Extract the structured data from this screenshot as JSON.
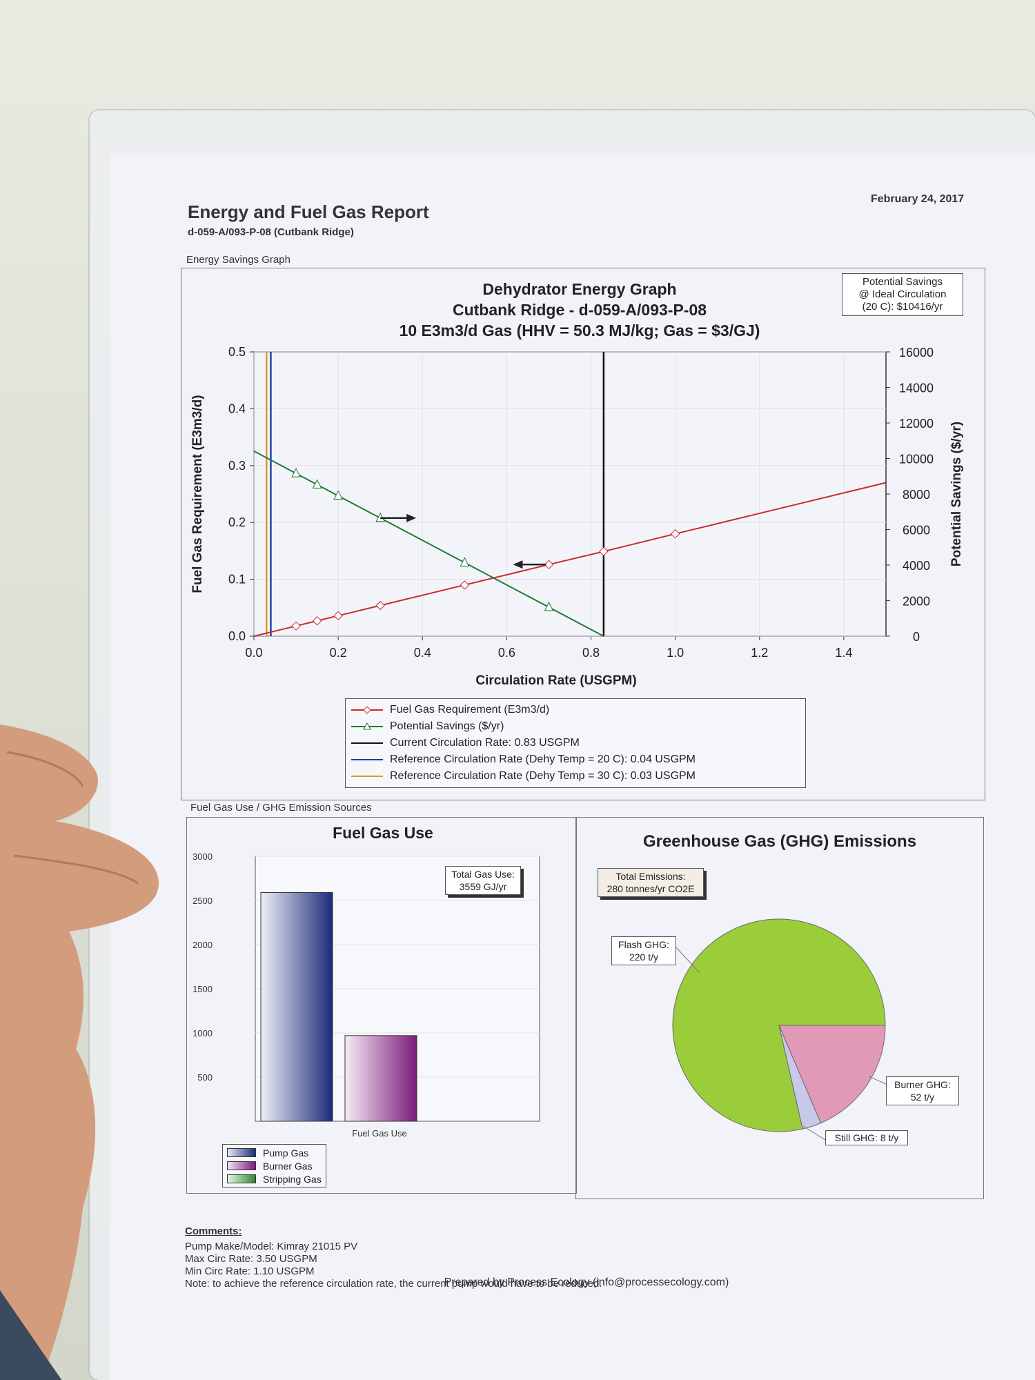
{
  "report": {
    "title": "Energy and Fuel Gas Report",
    "subtitle": "d-059-A/093-P-08 (Cutbank Ridge)",
    "date": "February 24, 2017"
  },
  "energy_section": {
    "label": "Energy Savings Graph",
    "chart_title_lines": [
      "Dehydrator Energy Graph",
      "Cutbank Ridge - d-059-A/093-P-08",
      "10 E3m3/d Gas (HHV = 50.3 MJ/kg; Gas = $3/GJ)"
    ],
    "savings_callout": [
      "Potential Savings",
      "@ Ideal Circulation",
      "(20 C): $10416/yr"
    ]
  },
  "fuel_section": {
    "label": "Fuel Gas Use / GHG Emission Sources",
    "fuel_title": "Fuel Gas Use",
    "fuel_callout": [
      "Total Gas Use:",
      "3559 GJ/yr"
    ],
    "ghg_title": "Greenhouse Gas (GHG) Emissions",
    "ghg_callout": [
      "Total Emissions:",
      "280 tonnes/yr CO2E"
    ]
  },
  "comments": {
    "heading": "Comments:",
    "lines": [
      "Pump Make/Model: Kimray 21015 PV",
      "Max Circ Rate: 3.50 USGPM",
      "Min Circ Rate: 1.10 USGPM",
      "Note: to achieve the reference circulation rate, the current pump would have to be reduced."
    ],
    "prepared_by": "Prepared by Process Ecology (info@processecology.com)"
  },
  "colors": {
    "fuel_gas": "#cc2a2a",
    "savings": "#1f7a35",
    "current_rate": "#111111",
    "ref20": "#1f3fa0",
    "ref30": "#d99a2a",
    "pump_gas": "#1c2a7a",
    "burner_gas": "#7a1a7a",
    "stripping_gas": "#2e8a2e",
    "flash_ghg": "#9bcc3a",
    "burner_ghg": "#e09ab8",
    "still_ghg": "#c8c8ea"
  },
  "chart_data": [
    {
      "type": "line",
      "title": "Dehydrator Energy Graph",
      "xlabel": "Circulation Rate (USGPM)",
      "ylabel": "Fuel Gas Requirement (E3m3/d)",
      "y2label": "Potential Savings ($/yr)",
      "xlim": [
        0,
        1.5
      ],
      "ylim": [
        0,
        0.5
      ],
      "y2lim": [
        0,
        16000
      ],
      "x_ticks": [
        "0.0",
        "0.2",
        "0.4",
        "0.6",
        "0.8",
        "1.0",
        "1.2",
        "1.4"
      ],
      "y_ticks": [
        "0.0",
        "0.1",
        "0.2",
        "0.3",
        "0.4",
        "0.5"
      ],
      "y2_ticks": [
        "0",
        "2000",
        "4000",
        "6000",
        "8000",
        "10000",
        "12000",
        "14000",
        "16000"
      ],
      "series": [
        {
          "name": "Fuel Gas Requirement (E3m3/d)",
          "axis": "left",
          "x": [
            0,
            0.1,
            0.15,
            0.2,
            0.3,
            0.5,
            0.7,
            0.83,
            1.0,
            1.5
          ],
          "y": [
            0.0,
            0.018,
            0.027,
            0.036,
            0.054,
            0.09,
            0.126,
            0.149,
            0.18,
            0.27
          ]
        },
        {
          "name": "Potential Savings ($/yr)",
          "axis": "right",
          "x": [
            0,
            0.1,
            0.15,
            0.2,
            0.3,
            0.5,
            0.7,
            0.83
          ],
          "y": [
            10416,
            9160,
            8530,
            7900,
            6650,
            4140,
            1630,
            0
          ]
        },
        {
          "name": "Current Circulation Rate: 0.83 USGPM",
          "vline": 0.83
        },
        {
          "name": "Reference Circulation Rate (Dehy Temp = 20 C): 0.04 USGPM",
          "vline": 0.04
        },
        {
          "name": "Reference Circulation Rate (Dehy Temp = 30 C): 0.03 USGPM",
          "vline": 0.03
        }
      ],
      "legend": "below"
    },
    {
      "type": "bar",
      "title": "Fuel Gas Use",
      "categories": [
        "Fuel Gas Use"
      ],
      "ylim": [
        0,
        3000
      ],
      "y_ticks": [
        "500",
        "1000",
        "1500",
        "2000",
        "2500",
        "3000"
      ],
      "series": [
        {
          "name": "Pump Gas",
          "values": [
            2590
          ]
        },
        {
          "name": "Burner Gas",
          "values": [
            970
          ]
        },
        {
          "name": "Stripping Gas",
          "values": [
            0
          ]
        }
      ],
      "legend": "bottom-left"
    },
    {
      "type": "pie",
      "title": "Greenhouse Gas (GHG) Emissions",
      "slices": [
        {
          "label": "Flash GHG:",
          "value_label": "220 t/y",
          "value": 220
        },
        {
          "label": "Burner GHG:",
          "value_label": "52 t/y",
          "value": 52
        },
        {
          "label": "Still GHG: 8 t/y",
          "value": 8
        }
      ]
    }
  ]
}
